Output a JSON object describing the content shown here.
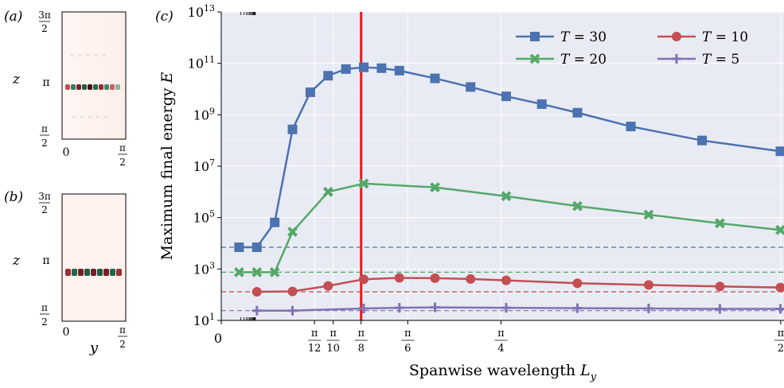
{
  "panel_a": {
    "label": "(a)",
    "z_label": "z",
    "ticks": {
      "z_top": "3π/2",
      "z_mid": "π",
      "z_bot": "π/2",
      "y_left": "0",
      "y_right": "π/2"
    }
  },
  "panel_b": {
    "label": "(b)",
    "z_label": "z",
    "y_label": "y",
    "ticks": {
      "z_top": "3π/2",
      "z_mid": "π",
      "z_bot": "π/2",
      "y_left": "0",
      "y_right": "π/2"
    }
  },
  "panel_c": {
    "label": "(c)"
  },
  "chart_data": {
    "type": "line",
    "xlabel": "Spanwise wavelength L_y",
    "ylabel": "Maximum final energy E",
    "yscale": "log",
    "ylim": [
      10,
      10000000000000.0
    ],
    "xlim": [
      0,
      1.58
    ],
    "x_ticks": [
      {
        "value": 0,
        "label": "0"
      },
      {
        "value": 0.2618,
        "label": "π/12"
      },
      {
        "value": 0.3142,
        "label": "π/10"
      },
      {
        "value": 0.3927,
        "label": "π/8"
      },
      {
        "value": 0.5236,
        "label": "π/6"
      },
      {
        "value": 0.7854,
        "label": "π/4"
      },
      {
        "value": 1.5708,
        "label": "π/2"
      }
    ],
    "y_ticks": [
      {
        "exp": 1,
        "label": "10^1"
      },
      {
        "exp": 3,
        "label": "10^3"
      },
      {
        "exp": 5,
        "label": "10^5"
      },
      {
        "exp": 7,
        "label": "10^7"
      },
      {
        "exp": 9,
        "label": "10^9"
      },
      {
        "exp": 11,
        "label": "10^11"
      },
      {
        "exp": 13,
        "label": "10^13"
      }
    ],
    "grid": true,
    "background": "#e8ebf3",
    "vertical_line": {
      "x": 0.3927,
      "color": "#e41a1c"
    },
    "legend": {
      "placement": "top-right",
      "columns": 2
    },
    "series": [
      {
        "name": "T = 30",
        "color": "#4c72b0",
        "marker": "square",
        "x": [
          0.05,
          0.1,
          0.15,
          0.2,
          0.25,
          0.3,
          0.35,
          0.4,
          0.45,
          0.5,
          0.6,
          0.7,
          0.8,
          0.9,
          1.0,
          1.15,
          1.35,
          1.57
        ],
        "y": [
          7000,
          7000,
          65000,
          270000000.0,
          7500000000.0,
          33000000000.0,
          60000000000.0,
          70000000000.0,
          65000000000.0,
          52000000000.0,
          26000000000.0,
          12000000000.0,
          5200000000.0,
          2600000000.0,
          1200000000.0,
          350000000.0,
          100000000.0,
          38000000.0
        ],
        "baseline": 7000
      },
      {
        "name": "T = 20",
        "color": "#55a868",
        "marker": "x",
        "x": [
          0.05,
          0.1,
          0.15,
          0.2,
          0.3,
          0.4,
          0.6,
          0.8,
          1.0,
          1.2,
          1.4,
          1.57
        ],
        "y": [
          750,
          750,
          750,
          28000,
          1000000.0,
          2100000.0,
          1500000.0,
          680000.0,
          280000.0,
          130000.0,
          60000,
          33000
        ],
        "baseline": 750
      },
      {
        "name": "T = 10",
        "color": "#c44e52",
        "marker": "circle",
        "x": [
          0.1,
          0.2,
          0.3,
          0.4,
          0.5,
          0.6,
          0.7,
          0.8,
          1.0,
          1.2,
          1.4,
          1.57
        ],
        "y": [
          130,
          135,
          220,
          400,
          450,
          440,
          410,
          360,
          280,
          240,
          210,
          190
        ],
        "baseline": 130
      },
      {
        "name": "T = 5",
        "color": "#8172b2",
        "marker": "plus",
        "x": [
          0.1,
          0.2,
          0.4,
          0.5,
          0.6,
          0.8,
          1.0,
          1.2,
          1.4,
          1.57
        ],
        "y": [
          24,
          24,
          29,
          31,
          32,
          31,
          30,
          29,
          28,
          28
        ],
        "baseline": 24
      }
    ]
  }
}
